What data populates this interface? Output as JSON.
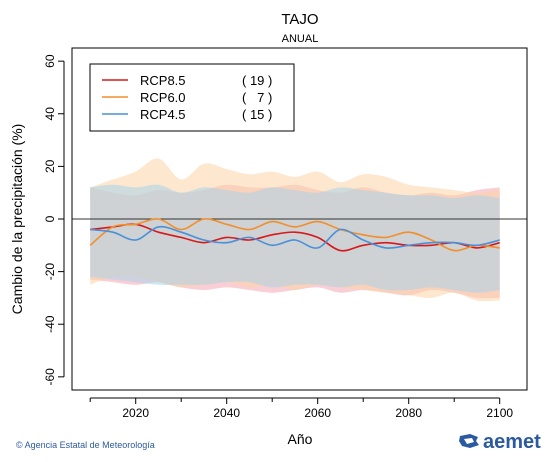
{
  "chart_data": {
    "type": "line",
    "title": "TAJO",
    "subtitle": "ANUAL",
    "xlabel": "Año",
    "ylabel": "Cambio de la precipitación (%)",
    "xlim": [
      2006,
      2106
    ],
    "ylim": [
      -65,
      65
    ],
    "x_ticks": [
      2020,
      2040,
      2060,
      2080,
      2100
    ],
    "y_ticks": [
      60,
      40,
      20,
      0,
      -20,
      -40,
      -60
    ],
    "legend_position": "top-left",
    "series": [
      {
        "name": "RCP8.5",
        "count": "( 19 )",
        "color": "#d7191c",
        "band_color": "#f4a6b0",
        "x": [
          2010,
          2015,
          2020,
          2025,
          2030,
          2035,
          2040,
          2045,
          2050,
          2055,
          2060,
          2065,
          2070,
          2075,
          2080,
          2085,
          2090,
          2095,
          2100
        ],
        "values": [
          -4,
          -3,
          -2,
          -5,
          -7,
          -9,
          -7,
          -8,
          -6,
          -5,
          -7,
          -12,
          -10,
          -9,
          -10,
          -10,
          -9,
          -11,
          -9
        ],
        "upper": [
          12,
          10,
          9,
          11,
          10,
          11,
          13,
          12,
          12,
          13,
          11,
          10,
          12,
          10,
          9,
          10,
          9,
          11,
          12
        ],
        "lower": [
          -23,
          -24,
          -25,
          -24,
          -26,
          -27,
          -26,
          -27,
          -28,
          -27,
          -26,
          -28,
          -27,
          -28,
          -29,
          -27,
          -28,
          -30,
          -30
        ]
      },
      {
        "name": "RCP6.0",
        "count": "(   7 )",
        "color": "#f28e2b",
        "band_color": "#fbd3a6",
        "x": [
          2010,
          2015,
          2020,
          2025,
          2030,
          2035,
          2040,
          2045,
          2050,
          2055,
          2060,
          2065,
          2070,
          2075,
          2080,
          2085,
          2090,
          2095,
          2100
        ],
        "values": [
          -10,
          -3,
          -2,
          0,
          -4,
          0,
          -2,
          -4,
          -1,
          -3,
          -1,
          -4,
          -6,
          -7,
          -5,
          -8,
          -12,
          -10,
          -11
        ],
        "upper": [
          12,
          15,
          18,
          23,
          15,
          21,
          19,
          17,
          18,
          16,
          18,
          14,
          17,
          16,
          13,
          12,
          11,
          10,
          11
        ],
        "lower": [
          -25,
          -22,
          -22,
          -24,
          -26,
          -25,
          -24,
          -26,
          -25,
          -27,
          -25,
          -26,
          -27,
          -28,
          -29,
          -30,
          -28,
          -31,
          -31
        ]
      },
      {
        "name": "RCP4.5",
        "count": "( 15 )",
        "color": "#4a90d9",
        "band_color": "#a9d3ea",
        "x": [
          2010,
          2015,
          2020,
          2025,
          2030,
          2035,
          2040,
          2045,
          2050,
          2055,
          2060,
          2065,
          2070,
          2075,
          2080,
          2085,
          2090,
          2095,
          2100
        ],
        "values": [
          -4,
          -5,
          -8,
          -3,
          -5,
          -8,
          -9,
          -7,
          -10,
          -8,
          -11,
          -4,
          -8,
          -11,
          -10,
          -9,
          -9,
          -10,
          -8
        ],
        "upper": [
          12,
          13,
          12,
          13,
          10,
          12,
          11,
          10,
          12,
          11,
          10,
          12,
          11,
          10,
          9,
          9,
          8,
          9,
          8
        ],
        "lower": [
          -22,
          -23,
          -24,
          -25,
          -25,
          -25,
          -24,
          -24,
          -26,
          -25,
          -25,
          -26,
          -25,
          -27,
          -27,
          -26,
          -27,
          -28,
          -27
        ]
      }
    ]
  },
  "footer": {
    "credit": "© Agencia Estatal de Meteorología",
    "logo_text": "aemet"
  }
}
